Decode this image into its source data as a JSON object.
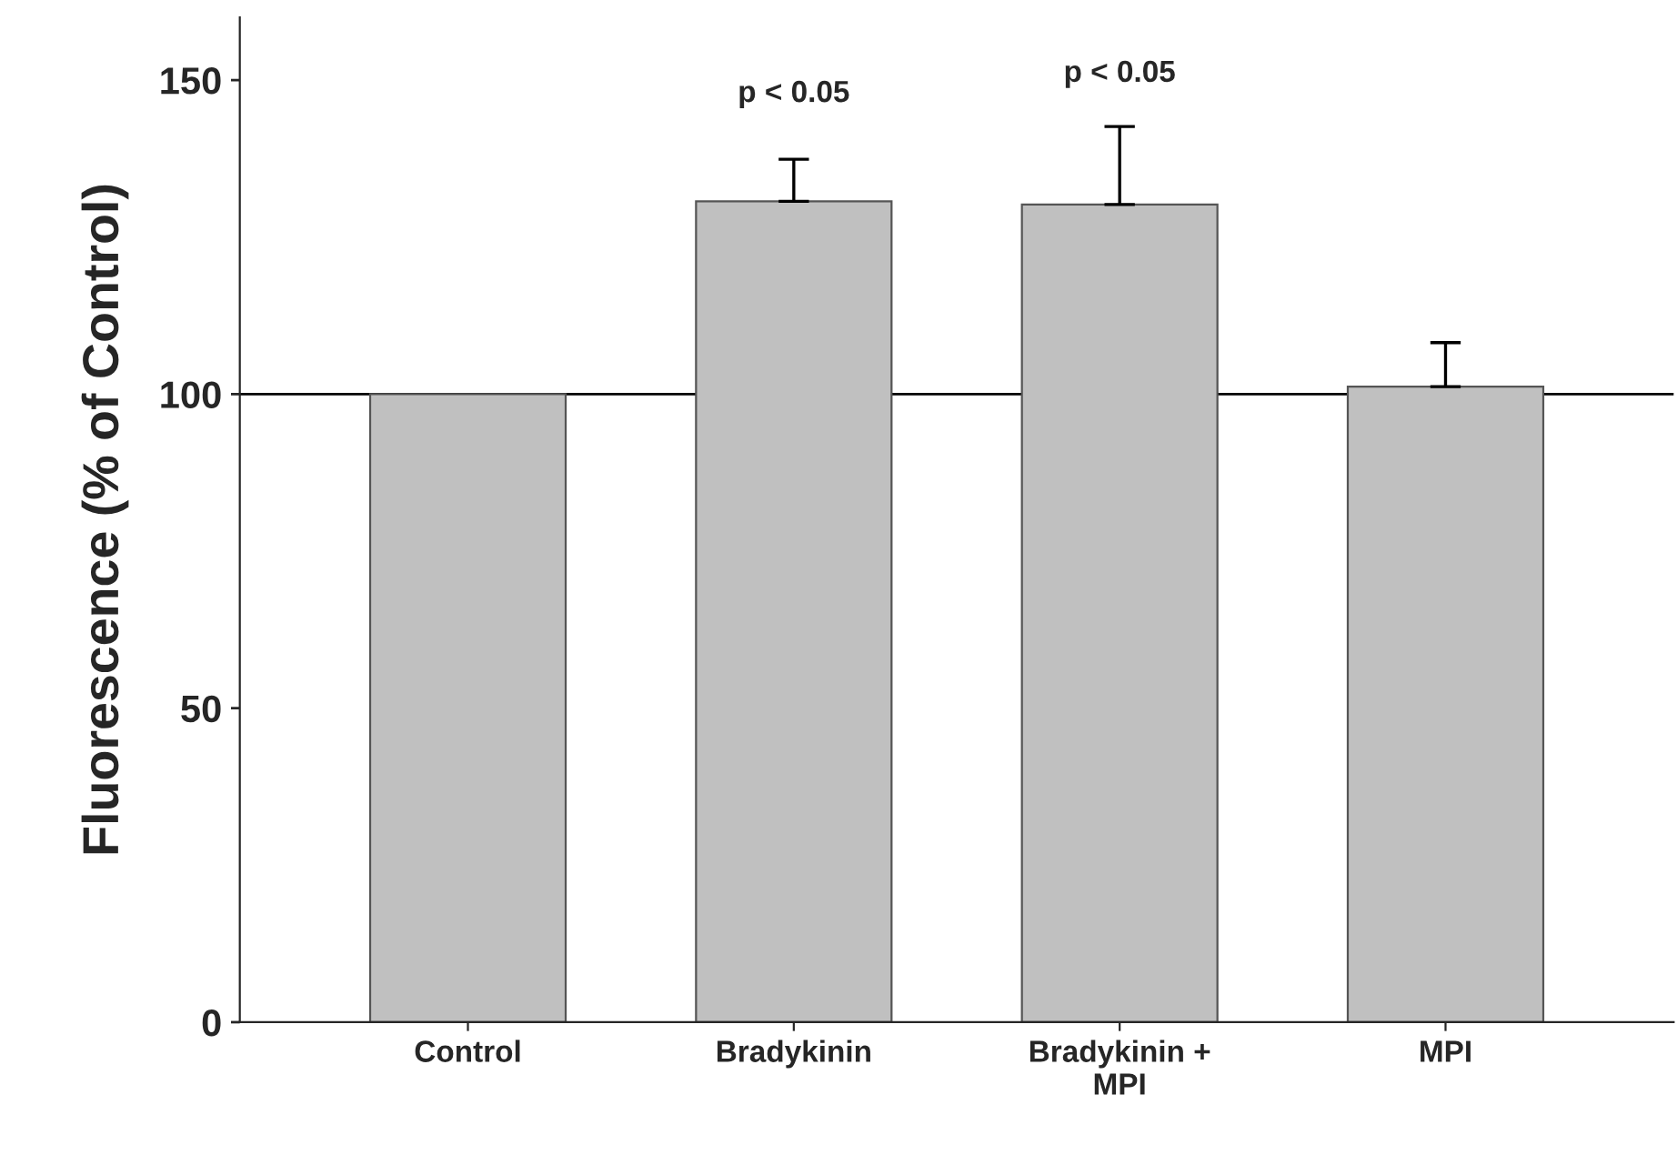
{
  "chart_data": {
    "type": "bar",
    "ylabel": "Fluorescence (% of Control)",
    "categories": [
      "Control",
      "Bradykinin",
      "Bradykinin +\nMPI",
      "MPI"
    ],
    "values": [
      100,
      130.7,
      130.2,
      101.2
    ],
    "errors": [
      null,
      [
        130.7,
        137.4
      ],
      [
        130.2,
        142.6
      ],
      [
        101.2,
        108.2
      ]
    ],
    "color": "#c0c0c0",
    "ylim": [
      0,
      160
    ],
    "yticks": [
      0,
      50,
      100,
      150
    ],
    "ref_lines": [
      {
        "axis": "y",
        "value": 100,
        "color": "#000000"
      }
    ],
    "annotations": [
      "p < 0.05",
      "p < 0.05"
    ],
    "grid": false
  }
}
